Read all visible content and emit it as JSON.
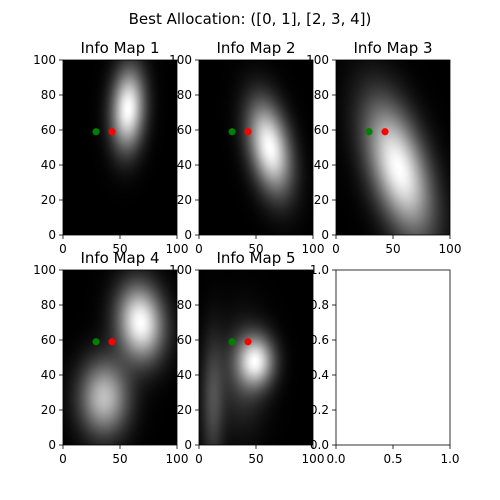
{
  "chart_data": {
    "type": "heatmap",
    "title": "Best Allocation: ([0, 1], [2, 3, 4])",
    "colormap": "gray",
    "marker_colors": {
      "green": "#008000",
      "red": "#ff0000"
    },
    "panels": [
      {
        "title": "Info Map 1",
        "xlim": [
          0,
          100
        ],
        "ylim": [
          0,
          100
        ],
        "xticks": [
          "0",
          "50",
          "100"
        ],
        "yticks": [
          "0",
          "20",
          "40",
          "60",
          "80",
          "100"
        ],
        "blobs": [
          {
            "x": 57,
            "y": 72,
            "sx": 10,
            "sy": 16,
            "rho": 0.1,
            "w": 1.0
          }
        ],
        "points": [
          {
            "x": 29,
            "y": 59,
            "color": "green"
          },
          {
            "x": 43,
            "y": 59,
            "color": "red"
          }
        ]
      },
      {
        "title": "Info Map 2",
        "xlim": [
          0,
          100
        ],
        "ylim": [
          0,
          100
        ],
        "xticks": [
          "0",
          "50",
          "100"
        ],
        "yticks": [
          "0",
          "20",
          "40",
          "60",
          "80",
          "100"
        ],
        "blobs": [
          {
            "x": 62,
            "y": 50,
            "sx": 13,
            "sy": 18,
            "rho": -0.35,
            "w": 1.0
          }
        ],
        "points": [
          {
            "x": 29,
            "y": 59,
            "color": "green"
          },
          {
            "x": 43,
            "y": 59,
            "color": "red"
          }
        ]
      },
      {
        "title": "Info Map 3",
        "xlim": [
          0,
          100
        ],
        "ylim": [
          0,
          100
        ],
        "xticks": [
          "0",
          "50",
          "100"
        ],
        "yticks": [
          "0",
          "20",
          "40",
          "60",
          "80",
          "100"
        ],
        "blobs": [
          {
            "x": 55,
            "y": 38,
            "sx": 20,
            "sy": 26,
            "rho": -0.5,
            "w": 1.0
          }
        ],
        "points": [
          {
            "x": 29,
            "y": 59,
            "color": "green"
          },
          {
            "x": 43,
            "y": 59,
            "color": "red"
          }
        ]
      },
      {
        "title": "Info Map 4",
        "xlim": [
          0,
          100
        ],
        "ylim": [
          0,
          100
        ],
        "xticks": [
          "0",
          "50",
          "100"
        ],
        "yticks": [
          "0",
          "20",
          "40",
          "60",
          "80",
          "100"
        ],
        "blobs": [
          {
            "x": 68,
            "y": 70,
            "sx": 14,
            "sy": 15,
            "rho": -0.1,
            "w": 1.0
          },
          {
            "x": 36,
            "y": 27,
            "sx": 15,
            "sy": 15,
            "rho": 0.0,
            "w": 0.75
          }
        ],
        "points": [
          {
            "x": 29,
            "y": 59,
            "color": "green"
          },
          {
            "x": 43,
            "y": 59,
            "color": "red"
          }
        ]
      },
      {
        "title": "Info Map 5",
        "xlim": [
          0,
          100
        ],
        "ylim": [
          0,
          100
        ],
        "xticks": [
          "0",
          "50",
          "100"
        ],
        "yticks": [
          "0",
          "20",
          "40",
          "60",
          "80",
          "100"
        ],
        "blobs": [
          {
            "x": 50,
            "y": 48,
            "sx": 11,
            "sy": 10,
            "rho": 0.0,
            "w": 0.95
          },
          {
            "x": 12,
            "y": 25,
            "sx": 7,
            "sy": 26,
            "rho": 0.0,
            "w": 0.32
          },
          {
            "x": 38,
            "y": 40,
            "sx": 15,
            "sy": 22,
            "rho": 0.0,
            "w": 0.25
          }
        ],
        "points": [
          {
            "x": 29,
            "y": 59,
            "color": "green"
          },
          {
            "x": 43,
            "y": 59,
            "color": "red"
          }
        ]
      },
      {
        "title": "",
        "xlim": [
          0,
          1
        ],
        "ylim": [
          0,
          1
        ],
        "xticks": [
          "0.0",
          "0.5",
          "1.0"
        ],
        "yticks": [
          "0.0",
          "0.2",
          "0.4",
          "0.6",
          "0.8",
          "1.0"
        ],
        "blobs": [],
        "points": []
      }
    ]
  }
}
